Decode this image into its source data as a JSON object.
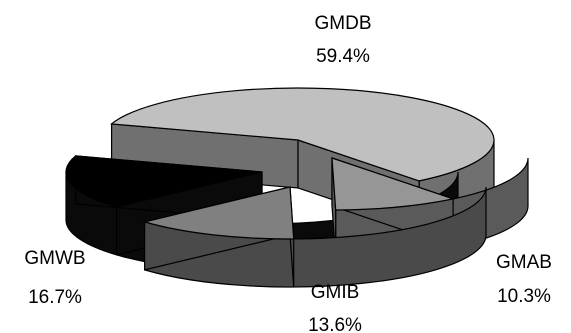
{
  "chart_data": {
    "type": "pie",
    "style": "3d-exploded",
    "categories": [
      "GMDB",
      "GMAB",
      "GMIB",
      "GMWB"
    ],
    "values": [
      59.4,
      10.3,
      13.6,
      16.7
    ],
    "value_labels": [
      "59.4%",
      "10.3%",
      "13.6%",
      "16.7%"
    ],
    "colors": [
      "#c0c0c0",
      "#969696",
      "#808080",
      "#000000"
    ],
    "side_colors": [
      "#707070",
      "#5a5a5a",
      "#4a4a4a",
      "#0a0a0a"
    ],
    "legend": "none"
  }
}
